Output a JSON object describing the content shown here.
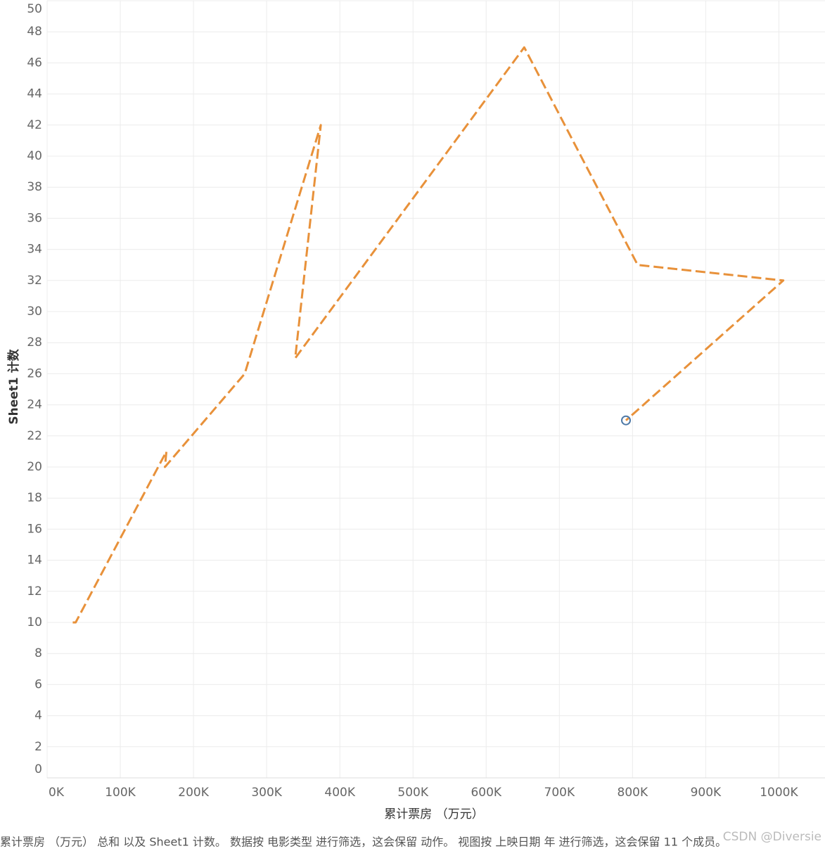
{
  "chart_data": {
    "type": "line",
    "x_label": "累计票房 （万元）",
    "y_label": "Sheet1 计数",
    "caption": "累计票房 （万元） 总和 以及 Sheet1 计数。 数据按 电影类型 进行筛选，这会保留 动作。 视图按 上映日期 年 进行筛选，这会保留 11 个成员。",
    "watermark": "CSDN @Diversie",
    "x": [
      35000,
      39000,
      163000,
      161000,
      270000,
      374000,
      339000,
      652000,
      807000,
      1006000,
      791000
    ],
    "series": [
      {
        "color": "#e8913a",
        "values": [
          10,
          10,
          21,
          20,
          26,
          42,
          27,
          47,
          33,
          32,
          23
        ]
      }
    ],
    "marker_color": "#4e79a7",
    "dashed": true,
    "grid": true,
    "xlim": [
      0,
      1063000
    ],
    "xticks": [
      {
        "value": 0,
        "label": "0K"
      },
      {
        "value": 100000,
        "label": "100K"
      },
      {
        "value": 200000,
        "label": "200K"
      },
      {
        "value": 300000,
        "label": "300K"
      },
      {
        "value": 400000,
        "label": "400K"
      },
      {
        "value": 500000,
        "label": "500K"
      },
      {
        "value": 600000,
        "label": "600K"
      },
      {
        "value": 700000,
        "label": "700K"
      },
      {
        "value": 800000,
        "label": "800K"
      },
      {
        "value": 900000,
        "label": "900K"
      },
      {
        "value": 1000000,
        "label": "1000K"
      }
    ],
    "ylim": [
      0,
      50
    ],
    "yticks": [
      0,
      2,
      4,
      6,
      8,
      10,
      12,
      14,
      16,
      18,
      20,
      22,
      24,
      26,
      28,
      30,
      32,
      34,
      36,
      38,
      40,
      42,
      44,
      46,
      48,
      50
    ]
  }
}
